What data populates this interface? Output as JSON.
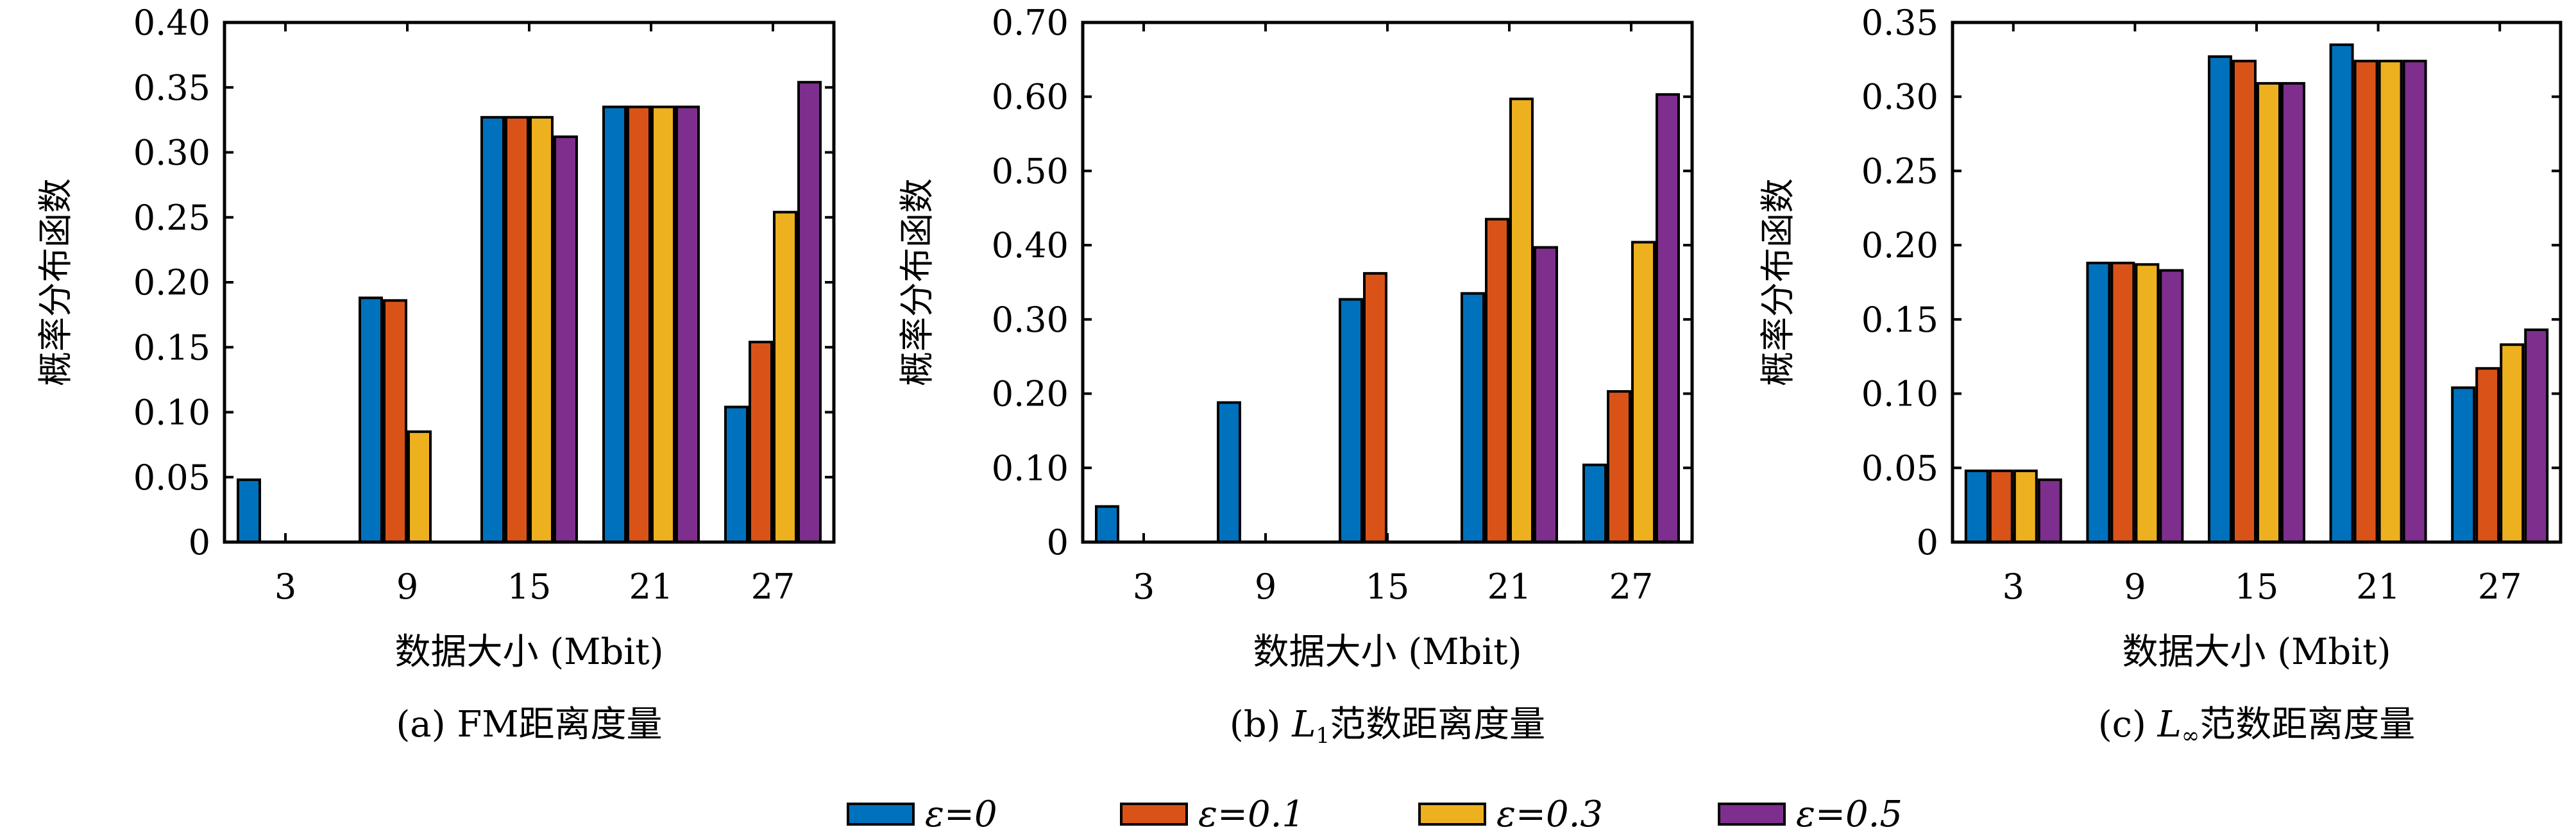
{
  "chart_data": [
    {
      "type": "bar",
      "panel_id": "a",
      "categories": [
        "3",
        "9",
        "15",
        "21",
        "27"
      ],
      "series": [
        {
          "name": "ε=0",
          "values": [
            0.048,
            0.188,
            0.327,
            0.335,
            0.104
          ]
        },
        {
          "name": "ε=0.1",
          "values": [
            0.0,
            0.186,
            0.327,
            0.335,
            0.154
          ]
        },
        {
          "name": "ε=0.3",
          "values": [
            0.0,
            0.085,
            0.327,
            0.335,
            0.254
          ]
        },
        {
          "name": "ε=0.5",
          "values": [
            0.0,
            0.0,
            0.312,
            0.335,
            0.354
          ]
        }
      ],
      "ylim": [
        0,
        0.4
      ],
      "yticks": [
        "0",
        "0.05",
        "0.10",
        "0.15",
        "0.20",
        "0.25",
        "0.30",
        "0.35",
        "0.40"
      ],
      "ylabel": "概率分布函数",
      "xlabel": "数据大小 (Mbit)",
      "caption": "(a) FM距离度量"
    },
    {
      "type": "bar",
      "panel_id": "b",
      "categories": [
        "3",
        "9",
        "15",
        "21",
        "27"
      ],
      "series": [
        {
          "name": "ε=0",
          "values": [
            0.048,
            0.188,
            0.327,
            0.335,
            0.104
          ]
        },
        {
          "name": "ε=0.1",
          "values": [
            0.0,
            0.0,
            0.362,
            0.435,
            0.203
          ]
        },
        {
          "name": "ε=0.3",
          "values": [
            0.0,
            0.0,
            0.0,
            0.597,
            0.404
          ]
        },
        {
          "name": "ε=0.5",
          "values": [
            0.0,
            0.0,
            0.0,
            0.397,
            0.603
          ]
        }
      ],
      "ylim": [
        0,
        0.7
      ],
      "yticks": [
        "0",
        "0.10",
        "0.20",
        "0.30",
        "0.40",
        "0.50",
        "0.60",
        "0.70"
      ],
      "ylabel": "概率分布函数",
      "xlabel": "数据大小 (Mbit)",
      "caption_prefix": "(b) ",
      "caption_math": "L",
      "caption_sub": "1",
      "caption_suffix": "范数距离度量"
    },
    {
      "type": "bar",
      "panel_id": "c",
      "categories": [
        "3",
        "9",
        "15",
        "21",
        "27"
      ],
      "series": [
        {
          "name": "ε=0",
          "values": [
            0.048,
            0.188,
            0.327,
            0.335,
            0.104
          ]
        },
        {
          "name": "ε=0.1",
          "values": [
            0.048,
            0.188,
            0.324,
            0.324,
            0.117
          ]
        },
        {
          "name": "ε=0.3",
          "values": [
            0.048,
            0.187,
            0.309,
            0.324,
            0.133
          ]
        },
        {
          "name": "ε=0.5",
          "values": [
            0.042,
            0.183,
            0.309,
            0.324,
            0.143
          ]
        }
      ],
      "ylim": [
        0,
        0.35
      ],
      "yticks": [
        "0",
        "0.05",
        "0.10",
        "0.15",
        "0.20",
        "0.25",
        "0.30",
        "0.35"
      ],
      "ylabel": "概率分布函数",
      "xlabel": "数据大小 (Mbit)",
      "caption_prefix": "(c) ",
      "caption_math": "L",
      "caption_sub": "∞",
      "caption_suffix": "范数距离度量"
    }
  ],
  "legend": {
    "placement": "bottom-center",
    "items": [
      {
        "label": "ε=0",
        "color": "#0072BD"
      },
      {
        "label": "ε=0.1",
        "color": "#D95319"
      },
      {
        "label": "ε=0.3",
        "color": "#EDB120"
      },
      {
        "label": "ε=0.5",
        "color": "#7E2F8E"
      }
    ]
  },
  "colors": [
    "#0072BD",
    "#D95319",
    "#EDB120",
    "#7E2F8E"
  ]
}
